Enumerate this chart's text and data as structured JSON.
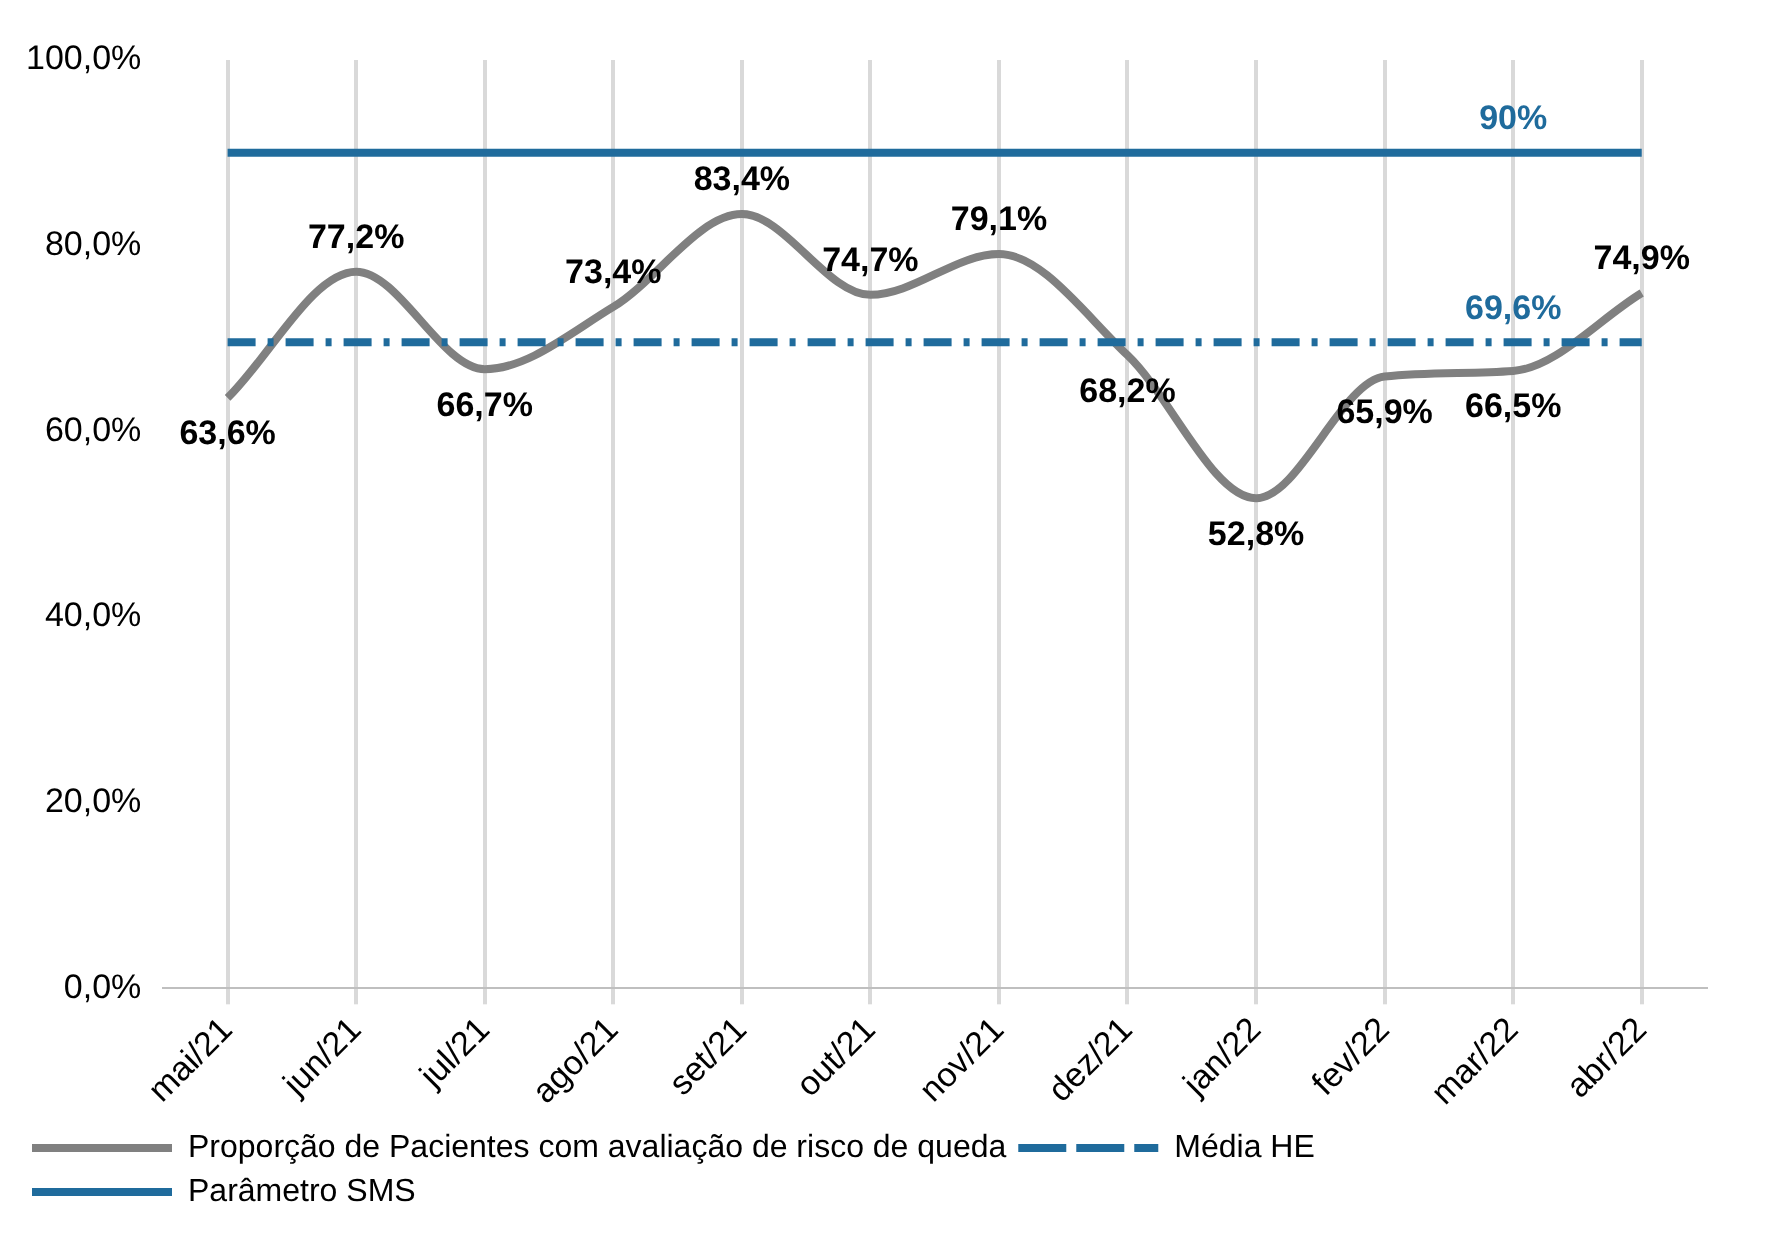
{
  "chart_data": {
    "type": "line",
    "categories": [
      "mai/21",
      "jun/21",
      "jul/21",
      "ago/21",
      "set/21",
      "out/21",
      "nov/21",
      "dez/21",
      "jan/22",
      "fev/22",
      "mar/22",
      "abr/22"
    ],
    "series": [
      {
        "name": "Proporção de Pacientes com avaliação de risco de queda",
        "color": "#808080",
        "line_style": "solid",
        "values": [
          63.6,
          77.2,
          66.7,
          73.4,
          83.4,
          74.7,
          79.1,
          68.2,
          52.8,
          65.9,
          66.5,
          74.9
        ],
        "value_labels": [
          "63,6%",
          "77,2%",
          "66,7%",
          "73,4%",
          "83,4%",
          "74,7%",
          "79,1%",
          "68,2%",
          "52,8%",
          "65,9%",
          "66,5%",
          "74,9%"
        ]
      },
      {
        "name": "Média HE",
        "color": "#1f6b9c",
        "line_style": "dashed",
        "values": [
          69.6,
          69.6,
          69.6,
          69.6,
          69.6,
          69.6,
          69.6,
          69.6,
          69.6,
          69.6,
          69.6,
          69.6
        ],
        "value_labels": [
          null,
          null,
          null,
          null,
          null,
          null,
          null,
          null,
          null,
          null,
          "69,6%",
          null
        ]
      },
      {
        "name": "Parâmetro SMS",
        "color": "#1f6b9c",
        "line_style": "solid",
        "values": [
          90,
          90,
          90,
          90,
          90,
          90,
          90,
          90,
          90,
          90,
          90,
          90
        ],
        "value_labels": [
          null,
          null,
          null,
          null,
          null,
          null,
          null,
          null,
          null,
          null,
          "90%",
          null
        ]
      }
    ],
    "ylim": [
      0,
      100
    ],
    "yticks": [
      {
        "value": 0,
        "label": "0,0%"
      },
      {
        "value": 20,
        "label": "20,0%"
      },
      {
        "value": 40,
        "label": "40,0%"
      },
      {
        "value": 60,
        "label": "60,0%"
      },
      {
        "value": 80,
        "label": "80,0%"
      },
      {
        "value": 100,
        "label": "100,0%"
      }
    ],
    "grid": "x",
    "legend": "bottom left",
    "marker": "none"
  }
}
